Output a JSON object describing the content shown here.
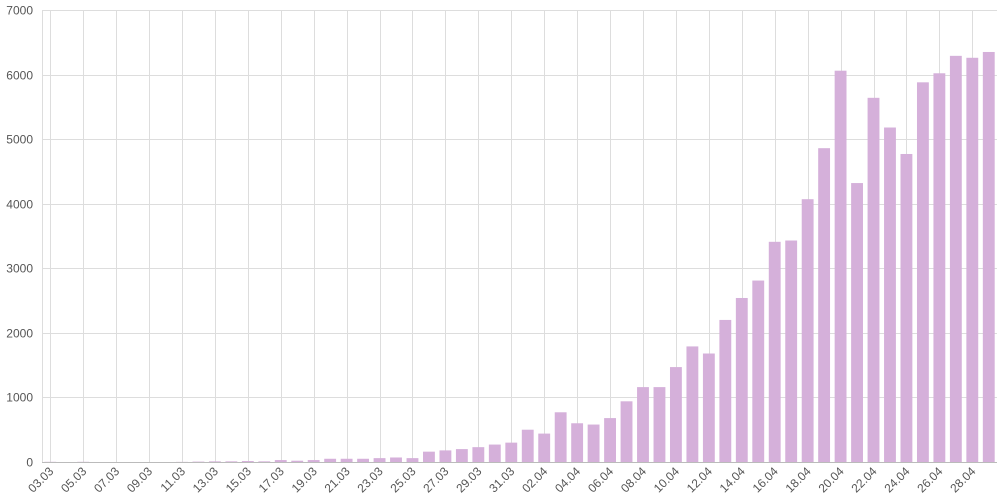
{
  "chart_data": {
    "type": "bar",
    "title": "",
    "xlabel": "",
    "ylabel": "",
    "ylim": [
      0,
      7000
    ],
    "y_ticks": [
      "0",
      "1000",
      "2000",
      "3000",
      "4000",
      "5000",
      "6000",
      "7000"
    ],
    "grid": true,
    "legend": "none",
    "bar_color": "#d5b0da",
    "grid_color": "#dddddd",
    "categories": [
      "03.03",
      "04.03",
      "05.03",
      "06.03",
      "07.03",
      "08.03",
      "09.03",
      "10.03",
      "11.03",
      "12.03",
      "13.03",
      "14.03",
      "15.03",
      "16.03",
      "17.03",
      "18.03",
      "19.03",
      "20.03",
      "21.03",
      "22.03",
      "23.03",
      "24.03",
      "25.03",
      "26.03",
      "27.03",
      "28.03",
      "29.03",
      "30.03",
      "31.03",
      "01.04",
      "02.04",
      "03.04",
      "04.04",
      "05.04",
      "06.04",
      "07.04",
      "08.04",
      "09.04",
      "10.04",
      "11.04",
      "12.04",
      "13.04",
      "14.04",
      "15.04",
      "16.04",
      "17.04",
      "18.04",
      "19.04",
      "20.04",
      "21.04",
      "22.04",
      "23.04",
      "24.04",
      "25.04",
      "26.04",
      "27.04",
      "28.04",
      "29.04"
    ],
    "x_tick_labels": [
      "03.03",
      "05.03",
      "07.03",
      "09.03",
      "11.03",
      "13.03",
      "15.03",
      "17.03",
      "19.03",
      "21.03",
      "23.03",
      "25.03",
      "27.03",
      "29.03",
      "31.03",
      "02.04",
      "04.04",
      "06.04",
      "08.04",
      "10.04",
      "12.04",
      "14.04",
      "16.04",
      "18.04",
      "20.04",
      "22.04",
      "24.04",
      "26.04",
      "28.04"
    ],
    "values": [
      3,
      0,
      3,
      0,
      0,
      0,
      0,
      0,
      2,
      6,
      10,
      10,
      15,
      10,
      30,
      20,
      30,
      50,
      50,
      50,
      60,
      70,
      60,
      160,
      180,
      200,
      230,
      270,
      300,
      500,
      440,
      770,
      600,
      580,
      680,
      940,
      1160,
      1160,
      1470,
      1790,
      1680,
      2200,
      2540,
      2810,
      3410,
      3430,
      4070,
      4860,
      6060,
      4320,
      5640,
      5180,
      4770,
      5880,
      6020,
      6290,
      6260,
      6350
    ]
  }
}
